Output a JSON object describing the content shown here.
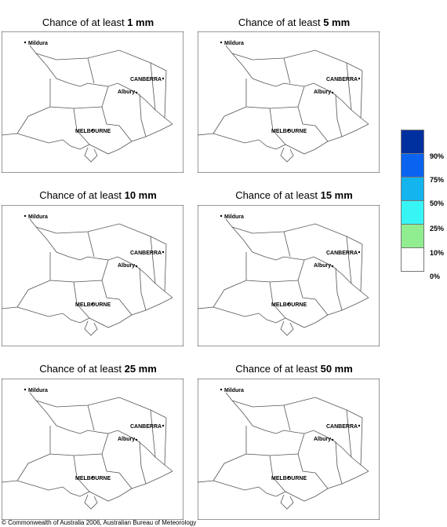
{
  "panels": [
    {
      "title_prefix": "Chance of at least ",
      "amount": "1 mm"
    },
    {
      "title_prefix": "Chance of at least ",
      "amount": "5 mm"
    },
    {
      "title_prefix": "Chance of at least ",
      "amount": "10 mm"
    },
    {
      "title_prefix": "Chance of at least ",
      "amount": "15 mm"
    },
    {
      "title_prefix": "Chance of at least ",
      "amount": "25 mm"
    },
    {
      "title_prefix": "Chance of at least ",
      "amount": "50 mm"
    }
  ],
  "cities": {
    "mildura": "Mildura",
    "canberra": "CANBERRA",
    "albury": "Albury",
    "melbourne": "MELBOURNE"
  },
  "legend": {
    "labels": [
      "90%",
      "75%",
      "50%",
      "25%",
      "10%",
      "0%"
    ],
    "colors": [
      "#002fa0",
      "#0a64f0",
      "#14b4ee",
      "#37f5f5",
      "#90ee90",
      "#ffffff"
    ]
  },
  "copyright": "© Commonwealth of Australia 2006, Australian Bureau of Meteorology"
}
